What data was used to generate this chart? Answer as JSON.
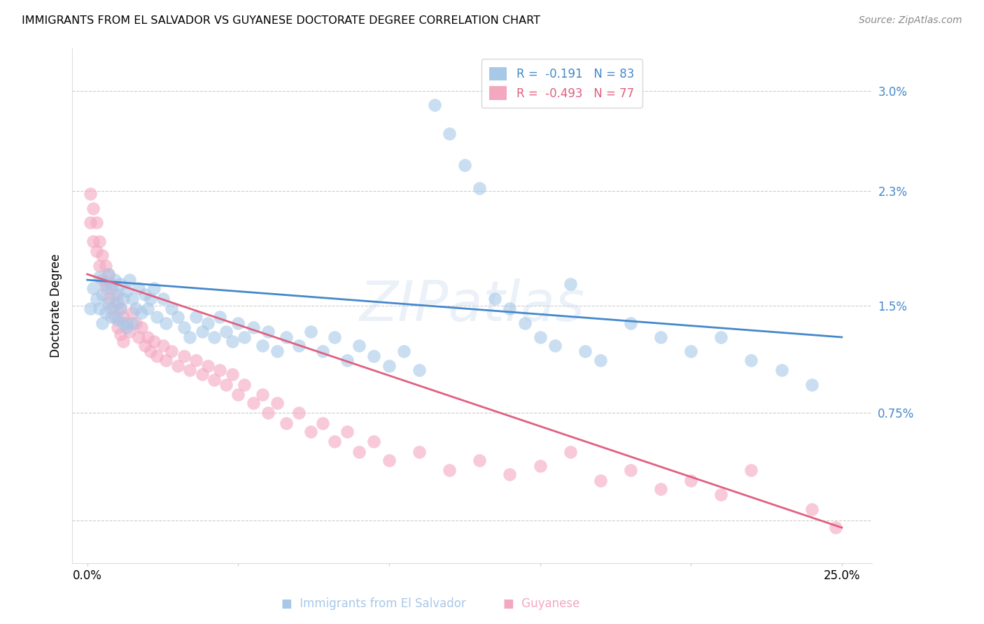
{
  "title": "IMMIGRANTS FROM EL SALVADOR VS GUYANESE DOCTORATE DEGREE CORRELATION CHART",
  "source": "Source: ZipAtlas.com",
  "ylabel": "Doctorate Degree",
  "blue_color": "#a8c8e8",
  "pink_color": "#f4a8c0",
  "blue_line_color": "#4488cc",
  "pink_line_color": "#e06080",
  "watermark": "ZIPatlas",
  "blue_scatter": [
    [
      0.001,
      0.0148
    ],
    [
      0.002,
      0.0162
    ],
    [
      0.003,
      0.0155
    ],
    [
      0.004,
      0.017
    ],
    [
      0.004,
      0.0148
    ],
    [
      0.005,
      0.0158
    ],
    [
      0.005,
      0.0138
    ],
    [
      0.006,
      0.0165
    ],
    [
      0.006,
      0.0145
    ],
    [
      0.007,
      0.0172
    ],
    [
      0.007,
      0.0152
    ],
    [
      0.008,
      0.0162
    ],
    [
      0.008,
      0.0142
    ],
    [
      0.009,
      0.0168
    ],
    [
      0.009,
      0.015
    ],
    [
      0.01,
      0.0158
    ],
    [
      0.01,
      0.014
    ],
    [
      0.011,
      0.0165
    ],
    [
      0.011,
      0.0148
    ],
    [
      0.012,
      0.0155
    ],
    [
      0.012,
      0.0138
    ],
    [
      0.013,
      0.016
    ],
    [
      0.013,
      0.0135
    ],
    [
      0.014,
      0.0168
    ],
    [
      0.015,
      0.0155
    ],
    [
      0.015,
      0.0138
    ],
    [
      0.016,
      0.0148
    ],
    [
      0.017,
      0.0162
    ],
    [
      0.018,
      0.0145
    ],
    [
      0.019,
      0.0158
    ],
    [
      0.02,
      0.0148
    ],
    [
      0.021,
      0.0155
    ],
    [
      0.022,
      0.0162
    ],
    [
      0.023,
      0.0142
    ],
    [
      0.025,
      0.0155
    ],
    [
      0.026,
      0.0138
    ],
    [
      0.028,
      0.0148
    ],
    [
      0.03,
      0.0142
    ],
    [
      0.032,
      0.0135
    ],
    [
      0.034,
      0.0128
    ],
    [
      0.036,
      0.0142
    ],
    [
      0.038,
      0.0132
    ],
    [
      0.04,
      0.0138
    ],
    [
      0.042,
      0.0128
    ],
    [
      0.044,
      0.0142
    ],
    [
      0.046,
      0.0132
    ],
    [
      0.048,
      0.0125
    ],
    [
      0.05,
      0.0138
    ],
    [
      0.052,
      0.0128
    ],
    [
      0.055,
      0.0135
    ],
    [
      0.058,
      0.0122
    ],
    [
      0.06,
      0.0132
    ],
    [
      0.063,
      0.0118
    ],
    [
      0.066,
      0.0128
    ],
    [
      0.07,
      0.0122
    ],
    [
      0.074,
      0.0132
    ],
    [
      0.078,
      0.0118
    ],
    [
      0.082,
      0.0128
    ],
    [
      0.086,
      0.0112
    ],
    [
      0.09,
      0.0122
    ],
    [
      0.095,
      0.0115
    ],
    [
      0.1,
      0.0108
    ],
    [
      0.105,
      0.0118
    ],
    [
      0.11,
      0.0105
    ],
    [
      0.115,
      0.029
    ],
    [
      0.12,
      0.027
    ],
    [
      0.125,
      0.0248
    ],
    [
      0.13,
      0.0232
    ],
    [
      0.135,
      0.0155
    ],
    [
      0.14,
      0.0148
    ],
    [
      0.145,
      0.0138
    ],
    [
      0.15,
      0.0128
    ],
    [
      0.155,
      0.0122
    ],
    [
      0.16,
      0.0165
    ],
    [
      0.165,
      0.0118
    ],
    [
      0.17,
      0.0112
    ],
    [
      0.18,
      0.0138
    ],
    [
      0.19,
      0.0128
    ],
    [
      0.2,
      0.0118
    ],
    [
      0.21,
      0.0128
    ],
    [
      0.22,
      0.0112
    ],
    [
      0.23,
      0.0105
    ],
    [
      0.24,
      0.0095
    ]
  ],
  "pink_scatter": [
    [
      0.001,
      0.0228
    ],
    [
      0.001,
      0.0208
    ],
    [
      0.002,
      0.0218
    ],
    [
      0.002,
      0.0195
    ],
    [
      0.003,
      0.0208
    ],
    [
      0.003,
      0.0188
    ],
    [
      0.004,
      0.0195
    ],
    [
      0.004,
      0.0178
    ],
    [
      0.005,
      0.0185
    ],
    [
      0.005,
      0.0168
    ],
    [
      0.006,
      0.0178
    ],
    [
      0.006,
      0.0162
    ],
    [
      0.007,
      0.0172
    ],
    [
      0.007,
      0.0155
    ],
    [
      0.008,
      0.0165
    ],
    [
      0.008,
      0.0148
    ],
    [
      0.009,
      0.0158
    ],
    [
      0.009,
      0.0142
    ],
    [
      0.01,
      0.0152
    ],
    [
      0.01,
      0.0135
    ],
    [
      0.011,
      0.0148
    ],
    [
      0.011,
      0.013
    ],
    [
      0.012,
      0.0142
    ],
    [
      0.012,
      0.0125
    ],
    [
      0.013,
      0.0138
    ],
    [
      0.014,
      0.0132
    ],
    [
      0.015,
      0.0145
    ],
    [
      0.016,
      0.0138
    ],
    [
      0.017,
      0.0128
    ],
    [
      0.018,
      0.0135
    ],
    [
      0.019,
      0.0122
    ],
    [
      0.02,
      0.0128
    ],
    [
      0.021,
      0.0118
    ],
    [
      0.022,
      0.0125
    ],
    [
      0.023,
      0.0115
    ],
    [
      0.025,
      0.0122
    ],
    [
      0.026,
      0.0112
    ],
    [
      0.028,
      0.0118
    ],
    [
      0.03,
      0.0108
    ],
    [
      0.032,
      0.0115
    ],
    [
      0.034,
      0.0105
    ],
    [
      0.036,
      0.0112
    ],
    [
      0.038,
      0.0102
    ],
    [
      0.04,
      0.0108
    ],
    [
      0.042,
      0.0098
    ],
    [
      0.044,
      0.0105
    ],
    [
      0.046,
      0.0095
    ],
    [
      0.048,
      0.0102
    ],
    [
      0.05,
      0.0088
    ],
    [
      0.052,
      0.0095
    ],
    [
      0.055,
      0.0082
    ],
    [
      0.058,
      0.0088
    ],
    [
      0.06,
      0.0075
    ],
    [
      0.063,
      0.0082
    ],
    [
      0.066,
      0.0068
    ],
    [
      0.07,
      0.0075
    ],
    [
      0.074,
      0.0062
    ],
    [
      0.078,
      0.0068
    ],
    [
      0.082,
      0.0055
    ],
    [
      0.086,
      0.0062
    ],
    [
      0.09,
      0.0048
    ],
    [
      0.095,
      0.0055
    ],
    [
      0.1,
      0.0042
    ],
    [
      0.11,
      0.0048
    ],
    [
      0.12,
      0.0035
    ],
    [
      0.13,
      0.0042
    ],
    [
      0.14,
      0.0032
    ],
    [
      0.15,
      0.0038
    ],
    [
      0.16,
      0.0048
    ],
    [
      0.17,
      0.0028
    ],
    [
      0.18,
      0.0035
    ],
    [
      0.19,
      0.0022
    ],
    [
      0.2,
      0.0028
    ],
    [
      0.21,
      0.0018
    ],
    [
      0.22,
      0.0035
    ],
    [
      0.24,
      0.0008
    ],
    [
      0.248,
      -0.0005
    ]
  ],
  "blue_line": {
    "x0": 0.0,
    "y0": 0.0168,
    "x1": 0.25,
    "y1": 0.0128
  },
  "pink_line": {
    "x0": 0.0,
    "y0": 0.0172,
    "x1": 0.25,
    "y1": -0.0005
  },
  "y_tick_vals": [
    0.0,
    0.0075,
    0.015,
    0.023,
    0.03
  ],
  "y_tick_labels": [
    "",
    "0.75%",
    "1.5%",
    "2.3%",
    "3.0%"
  ],
  "x_tick_vals": [
    0.0,
    0.05,
    0.1,
    0.15,
    0.2,
    0.25
  ],
  "x_tick_labels": [
    "0.0%",
    "",
    "",
    "",
    "",
    "25.0%"
  ],
  "ylim": [
    -0.003,
    0.033
  ],
  "xlim": [
    -0.005,
    0.26
  ],
  "legend_label_blue": "R =  -0.191   N = 83",
  "legend_label_pink": "R =  -0.493   N = 77",
  "legend_text_color_blue": "#4488cc",
  "legend_text_color_pink": "#e06080",
  "bottom_legend_blue": "Immigrants from El Salvador",
  "bottom_legend_pink": "Guyanese"
}
